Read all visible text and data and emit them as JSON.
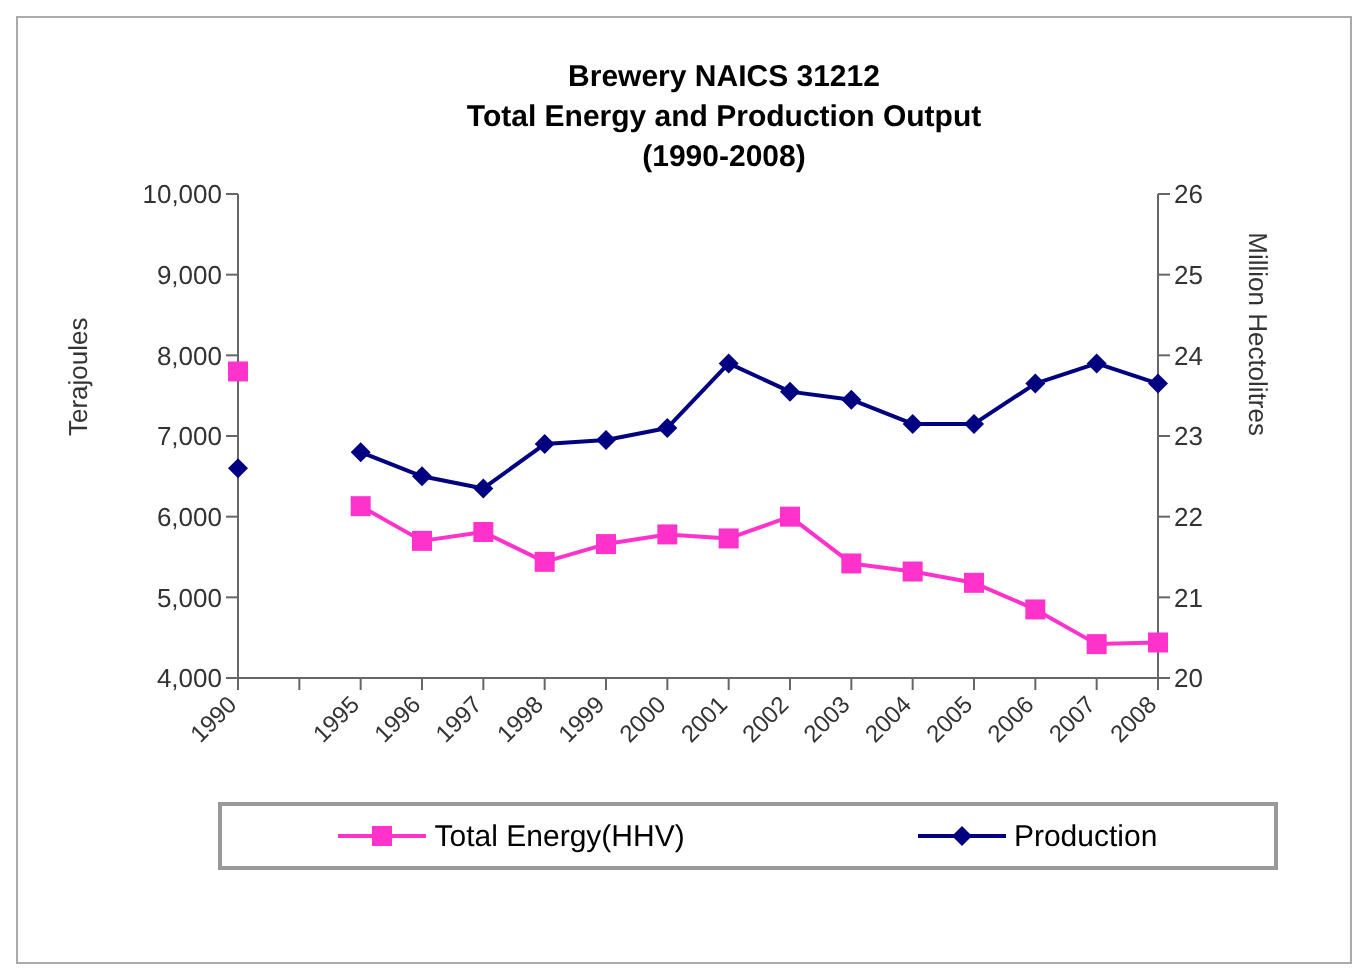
{
  "chart_data": {
    "type": "line",
    "title": "Brewery NAICS 31212\nTotal Energy and Production Output\n(1990-2008)",
    "ylabel": "Terajoules",
    "y2label": "Million Hectolitres",
    "categories": [
      "1990",
      null,
      "1995",
      "1996",
      "1997",
      "1998",
      "1999",
      "2000",
      "2001",
      "2002",
      "2003",
      "2004",
      "2005",
      "2006",
      "2007",
      "2008"
    ],
    "series": [
      {
        "name": "Total Energy(HHV)",
        "color": "#ff33cc",
        "marker": "square",
        "values": [
          7800,
          null,
          6130,
          5700,
          5810,
          5440,
          5660,
          5780,
          5730,
          6000,
          5420,
          5320,
          5180,
          4850,
          4420,
          4440
        ]
      },
      {
        "name": "Production",
        "color": "#000080",
        "marker": "diamond",
        "axis": "y2",
        "values": [
          22.6,
          null,
          22.8,
          22.5,
          22.35,
          22.9,
          22.95,
          23.1,
          23.9,
          23.55,
          23.45,
          23.15,
          23.15,
          23.65,
          23.9,
          23.65
        ]
      }
    ],
    "ylim": [
      4000,
      10000
    ],
    "yticks": [
      {
        "value": 4000,
        "label": "4,000"
      },
      {
        "value": 5000,
        "label": "5,000"
      },
      {
        "value": 6000,
        "label": "6,000"
      },
      {
        "value": 7000,
        "label": "7,000"
      },
      {
        "value": 8000,
        "label": "8,000"
      },
      {
        "value": 9000,
        "label": "9,000"
      },
      {
        "value": 10000,
        "label": "10,000"
      }
    ],
    "y2lim": [
      20,
      26
    ],
    "y2ticks": [
      20,
      21,
      22,
      23,
      24,
      25,
      26
    ],
    "legend": "bottom",
    "grid": false
  }
}
